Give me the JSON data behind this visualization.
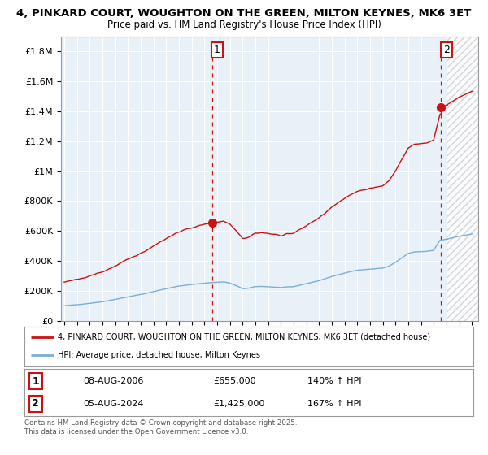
{
  "title_line1": "4, PINKARD COURT, WOUGHTON ON THE GREEN, MILTON KEYNES, MK6 3ET",
  "title_line2": "Price paid vs. HM Land Registry's House Price Index (HPI)",
  "background_color": "#ffffff",
  "chart_bg_color": "#e8f0f8",
  "grid_color": "#ffffff",
  "hpi_color": "#7bafd4",
  "price_color": "#cc1111",
  "dashed_line_color": "#cc1111",
  "ylim": [
    0,
    1900000
  ],
  "xlim_start": 1994.75,
  "xlim_end": 2027.5,
  "yticks": [
    0,
    200000,
    400000,
    600000,
    800000,
    1000000,
    1200000,
    1400000,
    1600000,
    1800000
  ],
  "ytick_labels": [
    "£0",
    "£200K",
    "£400K",
    "£600K",
    "£800K",
    "£1M",
    "£1.2M",
    "£1.4M",
    "£1.6M",
    "£1.8M"
  ],
  "sale1_x": 2006.6,
  "sale1_y": 655000,
  "sale1_label": "1",
  "sale2_x": 2024.59,
  "sale2_y": 1425000,
  "sale2_label": "2",
  "legend_line1": "4, PINKARD COURT, WOUGHTON ON THE GREEN, MILTON KEYNES, MK6 3ET (detached house)",
  "legend_line2": "HPI: Average price, detached house, Milton Keynes",
  "table_row1": [
    "1",
    "08-AUG-2006",
    "£655,000",
    "140% ↑ HPI"
  ],
  "table_row2": [
    "2",
    "05-AUG-2024",
    "£1,425,000",
    "167% ↑ HPI"
  ],
  "footnote": "Contains HM Land Registry data © Crown copyright and database right 2025.\nThis data is licensed under the Open Government Licence v3.0."
}
